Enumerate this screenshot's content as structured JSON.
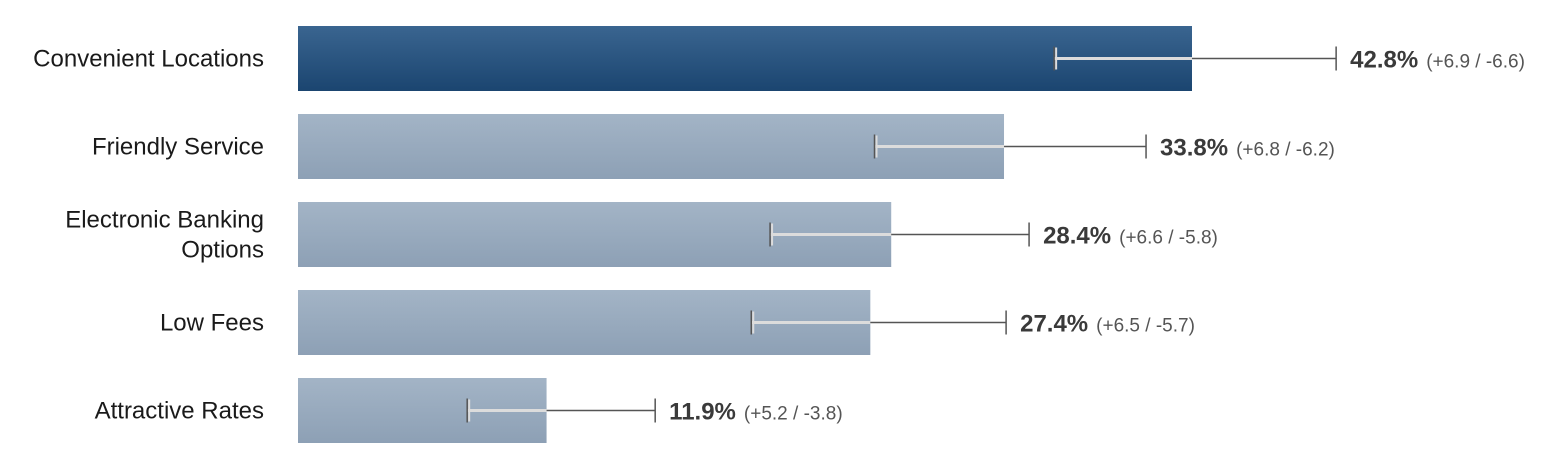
{
  "chart_data": {
    "type": "bar",
    "orientation": "horizontal",
    "categories": [
      [
        "Convenient Locations"
      ],
      [
        "Friendly Service"
      ],
      [
        "Electronic Banking",
        "Options"
      ],
      [
        "Low Fees"
      ],
      [
        "Attractive Rates"
      ]
    ],
    "values": [
      42.8,
      33.8,
      28.4,
      27.4,
      11.9
    ],
    "error_plus": [
      6.9,
      6.8,
      6.6,
      6.5,
      5.2
    ],
    "error_minus": [
      6.6,
      6.2,
      5.8,
      5.7,
      3.8
    ],
    "value_labels": [
      "42.8%",
      "33.8%",
      "28.4%",
      "27.4%",
      "11.9%"
    ],
    "ci_labels": [
      "(+6.9 / -6.6)",
      "(+6.8 / -6.2)",
      "(+6.6 / -5.8)",
      "(+6.5 / -5.7)",
      "(+5.2 / -3.8)"
    ],
    "highlight_index": 0,
    "xlim": [
      0,
      50
    ],
    "grid": false,
    "legend": "none",
    "colors": {
      "highlight_top": "#3a6590",
      "highlight_bottom": "#1b4570",
      "bar_top": "#a3b4c6",
      "bar_bottom": "#8da0b5",
      "error_line": "#555555",
      "error_inside": "#dcdcdc"
    }
  }
}
